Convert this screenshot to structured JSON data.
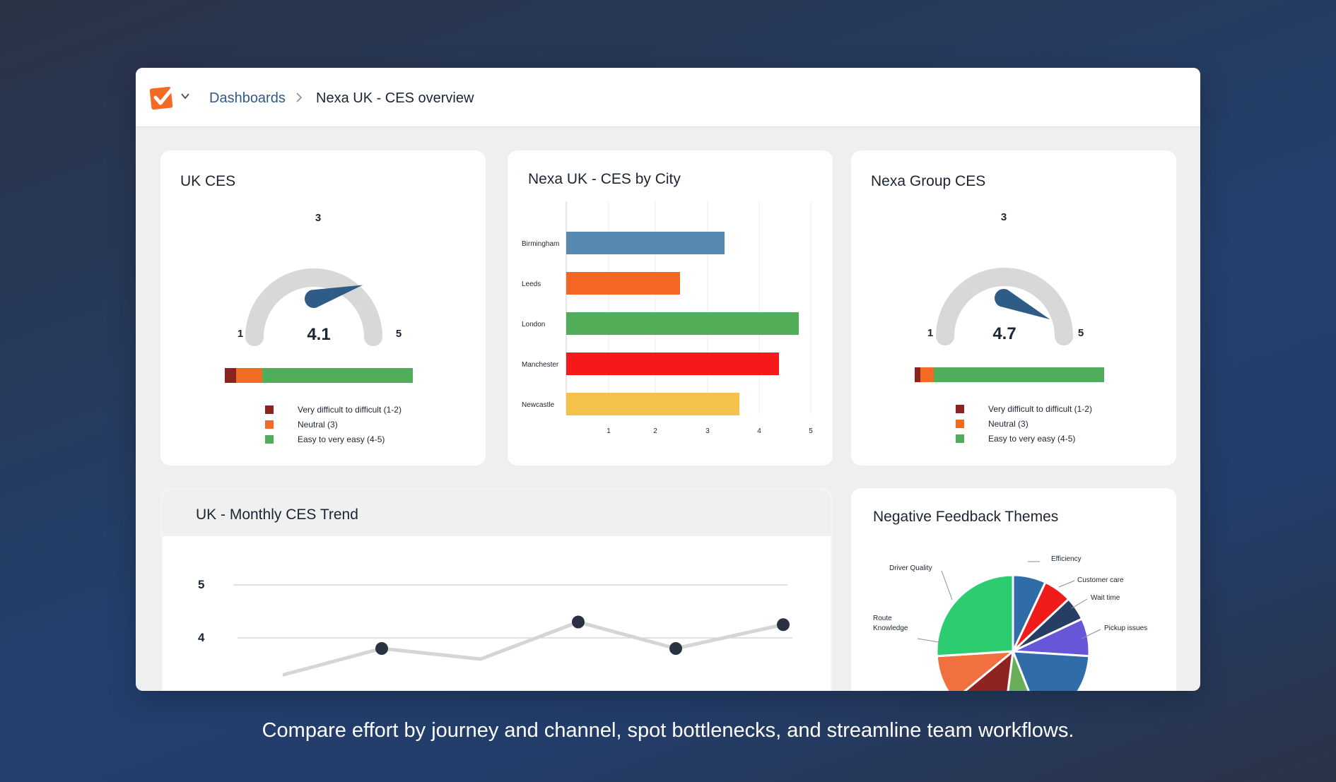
{
  "breadcrumb": {
    "link": "Dashboards",
    "current": "Nexa UK - CES overview"
  },
  "colors": {
    "very_difficult": "#8b2420",
    "neutral": "#f36a25",
    "easy": "#4fad5b",
    "needle": "#2f5c87",
    "gauge_track": "#d8d8d8"
  },
  "legend": {
    "very_difficult": "Very difficult to difficult (1-2)",
    "neutral": "Neutral (3)",
    "easy": "Easy to very easy (4-5)"
  },
  "uk_ces": {
    "title": "UK CES",
    "min": "1",
    "mid": "3",
    "max": "5",
    "value": 4.1,
    "value_label": "4.1",
    "distribution": {
      "very_difficult": 0.06,
      "neutral": 0.14,
      "easy": 0.8
    }
  },
  "group_ces": {
    "title": "Nexa Group CES",
    "min": "1",
    "mid": "3",
    "max": "5",
    "value": 4.7,
    "value_label": "4.7",
    "distribution": {
      "very_difficult": 0.03,
      "neutral": 0.07,
      "easy": 0.9
    }
  },
  "city_chart": {
    "title": "Nexa UK - CES by City",
    "chart_data": {
      "type": "bar",
      "orientation": "horizontal",
      "categories": [
        "Birmingham",
        "Leeds",
        "London",
        "Manchester",
        "Newcastle"
      ],
      "values": [
        3.2,
        2.3,
        4.7,
        4.3,
        3.5
      ],
      "colors": [
        "#5789b1",
        "#f56523",
        "#52ad58",
        "#f51919",
        "#f4c24b"
      ],
      "xticks": [
        "1",
        "2",
        "3",
        "4",
        "5"
      ],
      "xlim": [
        0,
        5
      ]
    }
  },
  "trend_chart": {
    "title": "UK - Monthly CES Trend",
    "chart_data": {
      "type": "line",
      "yticks": [
        "5",
        "4"
      ],
      "values": [
        3.3,
        3.8,
        3.6,
        4.3,
        3.8,
        4.25
      ],
      "ylim": [
        3,
        5
      ]
    }
  },
  "themes_chart": {
    "title": "Negative Feedback Themes",
    "chart_data": {
      "type": "pie",
      "slices": [
        {
          "label": "Efficiency",
          "value": 7,
          "color": "#2f6ca8"
        },
        {
          "label": "Customer care",
          "value": 6,
          "color": "#f01c1c"
        },
        {
          "label": "Wait time",
          "value": 5,
          "color": "#263e63"
        },
        {
          "label": "Pickup issues",
          "value": 8,
          "color": "#6656d8"
        },
        {
          "label": "",
          "value": 18,
          "color": "#2f6ca8"
        },
        {
          "label": "",
          "value": 8,
          "color": "#6aae5a"
        },
        {
          "label": "",
          "value": 12,
          "color": "#8e2320"
        },
        {
          "label": "Route Knowledge",
          "value": 10,
          "color": "#f0713f"
        },
        {
          "label": "Driver Quality",
          "value": 26,
          "color": "#2ecc71"
        }
      ]
    }
  },
  "caption": "Compare effort by journey and channel, spot bottlenecks, and streamline team workflows."
}
